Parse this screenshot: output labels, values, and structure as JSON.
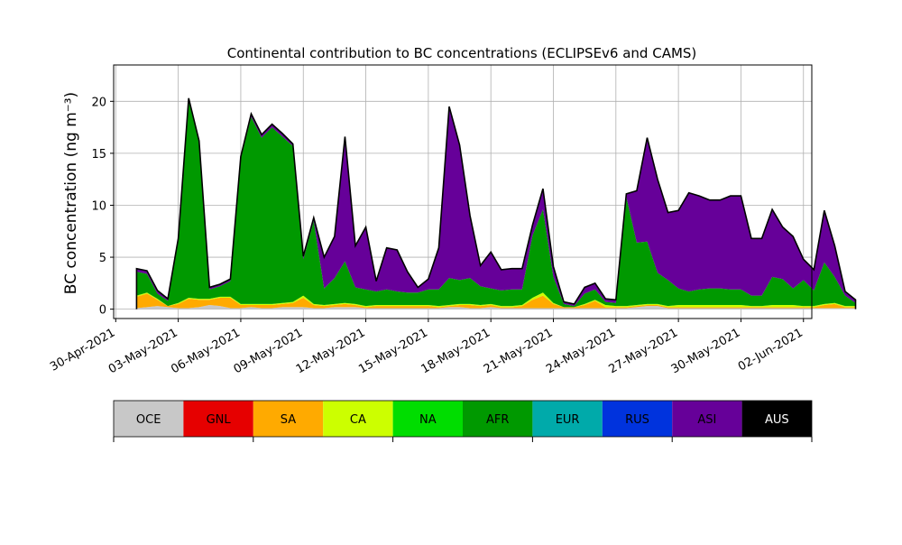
{
  "chart_data": {
    "type": "area",
    "title": "Continental contribution to BC concentrations (ECLIPSEv6 and CAMS)",
    "ylabel": "BC concentration (ng m⁻³)",
    "xlabel": "",
    "ylim": [
      -0.9,
      23.5
    ],
    "xlim_days_from_30apr": [
      -0.1,
      33.4
    ],
    "grid": true,
    "yticks": [
      0,
      5,
      10,
      15,
      20
    ],
    "xticks": [
      "30-Apr-2021",
      "03-May-2021",
      "06-May-2021",
      "09-May-2021",
      "12-May-2021",
      "15-May-2021",
      "18-May-2021",
      "21-May-2021",
      "24-May-2021",
      "27-May-2021",
      "30-May-2021",
      "02-Jun-2021"
    ],
    "x_start": "01-May-2021",
    "x_step_days": 0.5,
    "series": [
      {
        "name": "OCE",
        "color": "#c8c8c8",
        "values": [
          0.1,
          0.2,
          0.3,
          0.2,
          0.1,
          0.1,
          0.2,
          0.4,
          0.3,
          0.1,
          0.1,
          0.2,
          0.1,
          0.1,
          0.2,
          0.2,
          0.2,
          0.1,
          0.1,
          0.2,
          0.2,
          0.2,
          0.1,
          0.1,
          0.1,
          0.1,
          0.1,
          0.1,
          0.1,
          0.1,
          0.2,
          0.2,
          0.1,
          0.1,
          0.2,
          0.1,
          0.1,
          0.1,
          0.1,
          0.1,
          0.1,
          0.1,
          0.1,
          0.1,
          0.1,
          0.1,
          0.1,
          0.1,
          0.2,
          0.3,
          0.3,
          0.1,
          0.1,
          0.1,
          0.1,
          0.1,
          0.1,
          0.1,
          0.1,
          0.1,
          0.1,
          0.1,
          0.1,
          0.1,
          0.1,
          0.1,
          0.1,
          0.1,
          0.1,
          0.1
        ]
      },
      {
        "name": "GNL",
        "color": "#e60000",
        "values": [
          0,
          0,
          0,
          0,
          0,
          0,
          0,
          0,
          0,
          0,
          0,
          0,
          0,
          0,
          0,
          0,
          0,
          0,
          0,
          0,
          0,
          0,
          0,
          0,
          0,
          0,
          0,
          0,
          0,
          0,
          0,
          0,
          0,
          0,
          0,
          0,
          0,
          0,
          0,
          0,
          0,
          0,
          0,
          0,
          0,
          0,
          0,
          0,
          0,
          0,
          0,
          0,
          0,
          0,
          0,
          0,
          0,
          0,
          0,
          0,
          0,
          0,
          0,
          0,
          0,
          0,
          0,
          0,
          0,
          0
        ]
      },
      {
        "name": "SA",
        "color": "#ffaa00",
        "values": [
          1.1,
          1.3,
          0.6,
          0.1,
          0.4,
          0.9,
          0.7,
          0.5,
          0.8,
          1.0,
          0.3,
          0.2,
          0.3,
          0.3,
          0.3,
          0.4,
          0.9,
          0.3,
          0.2,
          0.2,
          0.3,
          0.2,
          0.1,
          0.2,
          0.2,
          0.2,
          0.2,
          0.2,
          0.2,
          0.1,
          0.1,
          0.2,
          0.3,
          0.2,
          0.2,
          0.1,
          0.1,
          0.2,
          0.8,
          1.2,
          0.4,
          0.1,
          0.1,
          0.3,
          0.7,
          0.1,
          0.1,
          0.1,
          0.1,
          0.1,
          0.1,
          0.1,
          0.1,
          0.1,
          0.1,
          0.1,
          0.1,
          0.1,
          0.1,
          0.1,
          0.1,
          0.1,
          0.1,
          0.1,
          0.1,
          0.1,
          0.3,
          0.4,
          0.1,
          0.1
        ]
      },
      {
        "name": "CA",
        "color": "#ccff00",
        "values": [
          0.1,
          0.1,
          0.1,
          0,
          0.1,
          0.1,
          0.1,
          0.1,
          0.1,
          0.1,
          0.1,
          0.1,
          0.1,
          0.1,
          0.1,
          0.1,
          0.2,
          0.1,
          0.1,
          0.1,
          0.1,
          0.1,
          0.1,
          0.1,
          0.1,
          0.1,
          0.1,
          0.1,
          0.1,
          0.1,
          0.1,
          0.1,
          0.1,
          0.1,
          0.1,
          0.1,
          0.1,
          0.1,
          0.2,
          0.3,
          0.1,
          0,
          0,
          0.1,
          0.1,
          0.2,
          0.1,
          0.1,
          0.1,
          0.1,
          0.1,
          0.1,
          0.2,
          0.2,
          0.2,
          0.2,
          0.2,
          0.2,
          0.2,
          0.1,
          0.1,
          0.2,
          0.2,
          0.2,
          0.1,
          0.1,
          0.1,
          0.1,
          0.1,
          0.1
        ]
      },
      {
        "name": "NA",
        "color": "#00dd00",
        "values": [
          0,
          0,
          0,
          0,
          0,
          0,
          0,
          0,
          0,
          0,
          0,
          0,
          0,
          0,
          0,
          0,
          0,
          0,
          0,
          0,
          0,
          0,
          0,
          0,
          0,
          0,
          0,
          0,
          0,
          0,
          0,
          0,
          0,
          0,
          0,
          0,
          0,
          0,
          0,
          0,
          0,
          0,
          0,
          0,
          0,
          0,
          0,
          0,
          0,
          0,
          0,
          0,
          0,
          0,
          0,
          0,
          0,
          0,
          0,
          0,
          0,
          0,
          0,
          0,
          0,
          0,
          0,
          0,
          0,
          0
        ]
      },
      {
        "name": "AFR",
        "color": "#009900",
        "values": [
          2.3,
          1.8,
          0.5,
          0.5,
          6.0,
          19.0,
          15.0,
          0.9,
          1.0,
          1.5,
          14.0,
          18.0,
          16.0,
          17.0,
          16.0,
          15.0,
          3.5,
          8.0,
          1.6,
          2.5,
          4.0,
          1.6,
          1.6,
          1.3,
          1.5,
          1.3,
          1.2,
          1.2,
          1.5,
          1.6,
          2.6,
          2.3,
          2.5,
          1.8,
          1.5,
          1.5,
          1.6,
          1.5,
          6.0,
          8.0,
          2.5,
          0.3,
          0.1,
          1.0,
          1.0,
          0.3,
          0.3,
          10.5,
          6.0,
          6.0,
          3.0,
          2.5,
          1.6,
          1.3,
          1.5,
          1.6,
          1.6,
          1.5,
          1.5,
          1.0,
          1.0,
          2.7,
          2.5,
          1.6,
          2.5,
          1.5,
          4.0,
          2.5,
          1.0,
          0.3
        ]
      },
      {
        "name": "EUR",
        "color": "#00aaaa",
        "values": [
          0,
          0,
          0,
          0,
          0,
          0,
          0,
          0,
          0,
          0,
          0,
          0,
          0,
          0,
          0,
          0,
          0,
          0,
          0,
          0,
          0,
          0,
          0,
          0,
          0,
          0,
          0,
          0,
          0,
          0,
          0,
          0,
          0,
          0,
          0,
          0,
          0,
          0,
          0,
          0,
          0,
          0,
          0,
          0,
          0,
          0,
          0,
          0,
          0,
          0,
          0,
          0,
          0,
          0,
          0,
          0,
          0,
          0,
          0,
          0,
          0,
          0,
          0,
          0,
          0,
          0,
          0,
          0,
          0,
          0
        ]
      },
      {
        "name": "RUS",
        "color": "#0033dd",
        "values": [
          0,
          0,
          0,
          0,
          0,
          0,
          0,
          0,
          0,
          0,
          0,
          0,
          0,
          0,
          0,
          0,
          0,
          0,
          0,
          0,
          0,
          0,
          0,
          0,
          0,
          0,
          0,
          0,
          0,
          0,
          0,
          0,
          0,
          0,
          0,
          0,
          0,
          0,
          0,
          0,
          0,
          0,
          0,
          0,
          0,
          0,
          0,
          0,
          0,
          0,
          0,
          0,
          0,
          0,
          0,
          0,
          0,
          0,
          0,
          0,
          0,
          0,
          0,
          0,
          0,
          0,
          0,
          0,
          0,
          0
        ]
      },
      {
        "name": "ASI",
        "color": "#660099",
        "values": [
          0.3,
          0.3,
          0.3,
          0.2,
          0.2,
          0.2,
          0.2,
          0.2,
          0.2,
          0.2,
          0.2,
          0.3,
          0.3,
          0.3,
          0.3,
          0.2,
          0.3,
          0.3,
          3.0,
          4.0,
          12.0,
          4.0,
          6.0,
          1.0,
          4.0,
          4.0,
          2.0,
          0.5,
          1.0,
          4.0,
          16.5,
          13.0,
          6.0,
          2.0,
          3.5,
          2.0,
          2.0,
          2.0,
          1.0,
          2.0,
          1.0,
          0.2,
          0.2,
          0.6,
          0.6,
          0.3,
          0.3,
          0.3,
          5.0,
          10.0,
          9.0,
          6.5,
          7.5,
          9.5,
          9.0,
          8.5,
          8.5,
          9.0,
          9.0,
          5.5,
          5.5,
          6.5,
          5.0,
          5.0,
          2.0,
          2.0,
          5.0,
          3.0,
          0.4,
          0.3
        ]
      },
      {
        "name": "AUS",
        "color": "#000000",
        "values": [
          0,
          0,
          0,
          0,
          0,
          0,
          0,
          0,
          0,
          0,
          0,
          0,
          0,
          0,
          0,
          0,
          0,
          0,
          0,
          0,
          0,
          0,
          0,
          0,
          0,
          0,
          0,
          0,
          0,
          0,
          0,
          0,
          0,
          0,
          0,
          0,
          0,
          0,
          0,
          0,
          0,
          0,
          0,
          0,
          0,
          0,
          0,
          0,
          0,
          0,
          0,
          0,
          0,
          0,
          0,
          0,
          0,
          0,
          0,
          0,
          0,
          0,
          0,
          0,
          0,
          0,
          0,
          0,
          0,
          0
        ]
      }
    ]
  }
}
